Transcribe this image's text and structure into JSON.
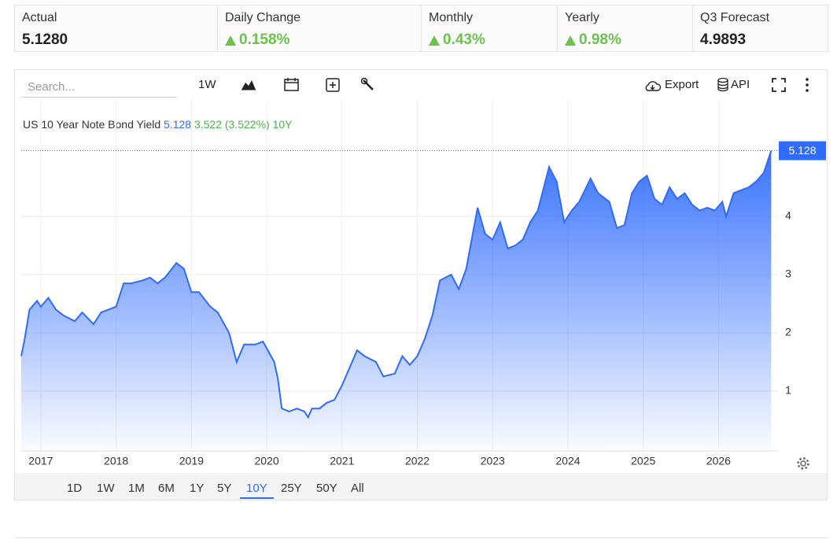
{
  "stats": [
    {
      "label": "Actual",
      "value": "5.1280"
    },
    {
      "label": "Daily Change",
      "value": "0.158%"
    },
    {
      "label": "Monthly",
      "value": "0.43%"
    },
    {
      "label": "Yearly",
      "value": "0.98%"
    },
    {
      "label": "Q3 Forecast",
      "value": "4.9893"
    }
  ],
  "toolbar": {
    "search_placeholder": "Search...",
    "interval": "1W",
    "export": "Export",
    "api": "API"
  },
  "ranges": [
    "1D",
    "1W",
    "1M",
    "6M",
    "1Y",
    "5Y",
    "10Y",
    "25Y",
    "50Y",
    "All"
  ],
  "active_range": 6,
  "chart_data": {
    "type": "area",
    "series": [
      {
        "name": "US 10 Year Note Bond Yield",
        "color": "#2f6bff",
        "x": [
          2016.74,
          2016.78,
          2016.85,
          2016.95,
          2017.0,
          2017.1,
          2017.2,
          2017.3,
          2017.45,
          2017.55,
          2017.7,
          2017.8,
          2017.9,
          2018.0,
          2018.1,
          2018.2,
          2018.35,
          2018.45,
          2018.55,
          2018.65,
          2018.8,
          2018.9,
          2019.0,
          2019.1,
          2019.25,
          2019.35,
          2019.5,
          2019.6,
          2019.7,
          2019.85,
          2019.95,
          2020.1,
          2020.15,
          2020.2,
          2020.3,
          2020.4,
          2020.5,
          2020.55,
          2020.6,
          2020.7,
          2020.8,
          2020.9,
          2021.0,
          2021.1,
          2021.2,
          2021.3,
          2021.45,
          2021.55,
          2021.7,
          2021.8,
          2021.9,
          2022.0,
          2022.1,
          2022.2,
          2022.3,
          2022.45,
          2022.55,
          2022.65,
          2022.8,
          2022.9,
          2023.0,
          2023.1,
          2023.2,
          2023.3,
          2023.4,
          2023.5,
          2023.6,
          2023.75,
          2023.85,
          2023.95,
          2024.05,
          2024.15,
          2024.3,
          2024.4,
          2024.55,
          2024.65,
          2024.75,
          2024.85,
          2024.95,
          2025.05,
          2025.15,
          2025.25,
          2025.35,
          2025.45,
          2025.55,
          2025.65,
          2025.75,
          2025.85,
          2025.95,
          2026.05,
          2026.1,
          2026.2,
          2026.3,
          2026.4,
          2026.5,
          2026.6,
          2026.7
        ],
        "values": [
          1.6,
          1.85,
          2.4,
          2.55,
          2.45,
          2.6,
          2.4,
          2.3,
          2.2,
          2.35,
          2.15,
          2.35,
          2.4,
          2.45,
          2.85,
          2.85,
          2.9,
          2.95,
          2.85,
          2.95,
          3.2,
          3.1,
          2.7,
          2.7,
          2.45,
          2.35,
          2.0,
          1.5,
          1.8,
          1.8,
          1.85,
          1.5,
          1.2,
          0.7,
          0.65,
          0.7,
          0.65,
          0.55,
          0.7,
          0.7,
          0.8,
          0.85,
          1.1,
          1.4,
          1.7,
          1.6,
          1.5,
          1.25,
          1.3,
          1.6,
          1.45,
          1.6,
          1.9,
          2.3,
          2.9,
          3.0,
          2.75,
          3.1,
          4.15,
          3.7,
          3.6,
          3.9,
          3.45,
          3.5,
          3.6,
          3.9,
          4.1,
          4.85,
          4.6,
          3.9,
          4.1,
          4.25,
          4.65,
          4.4,
          4.25,
          3.8,
          3.85,
          4.4,
          4.6,
          4.7,
          4.3,
          4.2,
          4.5,
          4.3,
          4.4,
          4.2,
          4.1,
          4.15,
          4.1,
          4.25,
          4.0,
          4.4,
          4.45,
          4.5,
          4.6,
          4.75,
          5.128
        ]
      }
    ],
    "change_label": "3.522 (3.522%)",
    "period_label": "10Y",
    "xlim": [
      2016.74,
      2026.8
    ],
    "xticks": [
      2017,
      2018,
      2019,
      2020,
      2021,
      2022,
      2023,
      2024,
      2025,
      2026
    ],
    "ylim": [
      0,
      6
    ],
    "yticks": [
      1,
      2,
      3,
      4
    ],
    "grid": true
  }
}
